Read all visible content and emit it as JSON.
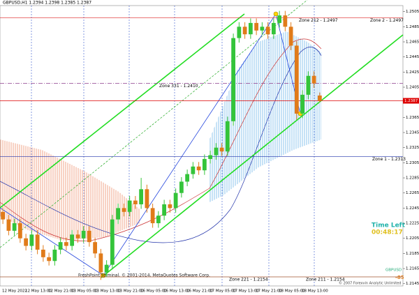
{
  "chart_data": {
    "type": "candlestick",
    "title": "GBPUSD,H1 1.2394 1.2398 1.2385 1.2387",
    "categories": [
      "12 May 2022",
      null,
      null,
      null,
      "12 May 13:00",
      null,
      null,
      null,
      "12 May 21:00",
      null,
      null,
      null,
      "13 May 05:00",
      null,
      null,
      null,
      "13 May 13:00",
      null,
      null,
      null,
      "13 May 21:00",
      null,
      null,
      null,
      "16 May 05:00",
      null,
      null,
      null,
      "16 May 13:00",
      null,
      null,
      null,
      "16 May 21:00",
      null,
      null,
      null,
      "17 May 05:00",
      null,
      null,
      null,
      "17 May 13:00",
      null,
      null,
      null,
      "17 May 21:00",
      null,
      null,
      null,
      "18 May 05:00",
      null,
      null,
      null,
      "18 May 13:00",
      null,
      null,
      null
    ],
    "open": [
      1.224,
      1.223,
      1.2215,
      1.2225,
      1.2205,
      1.2195,
      1.221,
      1.219,
      1.218,
      1.2175,
      1.219,
      1.22,
      1.2195,
      1.221,
      1.2205,
      1.2215,
      1.22,
      1.2185,
      1.216,
      1.217,
      1.223,
      1.2245,
      1.224,
      1.2255,
      1.225,
      1.227,
      1.2245,
      1.2225,
      1.2235,
      1.225,
      1.2245,
      1.2265,
      1.228,
      1.229,
      1.23,
      1.2295,
      1.231,
      1.2315,
      1.2325,
      1.232,
      1.236,
      1.247,
      1.2485,
      1.2475,
      1.249,
      1.248,
      1.2485,
      1.2475,
      1.249,
      1.25,
      1.2485,
      1.246,
      1.237,
      1.2395,
      1.242,
      1.2394
    ],
    "high": [
      1.2246,
      1.2236,
      1.2231,
      1.2231,
      1.2211,
      1.2216,
      1.2216,
      1.2196,
      1.2186,
      1.2196,
      1.2206,
      1.2206,
      1.2216,
      1.2216,
      1.2221,
      1.2221,
      1.2206,
      1.2191,
      1.2176,
      1.2236,
      1.2251,
      1.2251,
      1.2261,
      1.2261,
      1.2285,
      1.2276,
      1.2251,
      1.2241,
      1.2256,
      1.2256,
      1.2271,
      1.2286,
      1.2296,
      1.2306,
      1.2306,
      1.2316,
      1.2321,
      1.2331,
      1.2331,
      1.2366,
      1.2476,
      1.2491,
      1.2491,
      1.2496,
      1.2496,
      1.2491,
      1.2491,
      1.2496,
      1.2506,
      1.2506,
      1.2491,
      1.2466,
      1.2401,
      1.2426,
      1.2426,
      1.2398
    ],
    "low": [
      1.2224,
      1.2209,
      1.2209,
      1.2199,
      1.2189,
      1.2189,
      1.2184,
      1.2174,
      1.2169,
      1.2169,
      1.2184,
      1.2189,
      1.2189,
      1.2199,
      1.2199,
      1.2194,
      1.2179,
      1.215,
      1.2154,
      1.2164,
      1.2224,
      1.2234,
      1.2234,
      1.2244,
      1.2244,
      1.2239,
      1.2219,
      1.2219,
      1.2229,
      1.2239,
      1.2239,
      1.2259,
      1.2274,
      1.2284,
      1.2289,
      1.2289,
      1.2304,
      1.2309,
      1.2314,
      1.2314,
      1.2354,
      1.2464,
      1.2469,
      1.2469,
      1.2474,
      1.2474,
      1.2469,
      1.2469,
      1.2484,
      1.2479,
      1.2454,
      1.2362,
      1.2364,
      1.2389,
      1.2404,
      1.2385
    ],
    "close": [
      1.223,
      1.2215,
      1.2225,
      1.2205,
      1.2195,
      1.221,
      1.219,
      1.218,
      1.2175,
      1.219,
      1.22,
      1.2195,
      1.221,
      1.2205,
      1.2215,
      1.22,
      1.2185,
      1.216,
      1.217,
      1.223,
      1.2245,
      1.224,
      1.2255,
      1.225,
      1.227,
      1.2245,
      1.2225,
      1.2235,
      1.225,
      1.2245,
      1.2265,
      1.228,
      1.229,
      1.23,
      1.2295,
      1.231,
      1.2315,
      1.2325,
      1.232,
      1.236,
      1.247,
      1.2485,
      1.2475,
      1.249,
      1.248,
      1.2485,
      1.2475,
      1.249,
      1.25,
      1.2485,
      1.246,
      1.237,
      1.2395,
      1.242,
      1.241,
      1.2387
    ],
    "up_color": "#34c43a",
    "down_color": "#e07b1a",
    "ylim": [
      1.2142,
      1.2513
    ],
    "yticks": [
      1.2505,
      1.2485,
      1.2465,
      1.2445,
      1.2425,
      1.2405,
      1.2385,
      1.2365,
      1.2345,
      1.2325,
      1.2305,
      1.2285,
      1.2265,
      1.2245,
      1.2225,
      1.2205,
      1.2185,
      1.2165,
      1.2145
    ],
    "zones": [
      {
        "label": "Zone 2 - 1.2497",
        "level": 1.2497,
        "color": "#d22"
      },
      {
        "label": "Zone 212 - 1.2497",
        "level": 1.2497,
        "color": "#d9822b"
      },
      {
        "label": "Zone 331 - 1.2410",
        "level": 1.241,
        "color": "#8b3a8b"
      },
      {
        "label": "Zone 1 - 1.2313",
        "level": 1.2313,
        "color": "#2233aa"
      },
      {
        "label": "Zone 221 - 1.2154",
        "level": 1.2154,
        "color": "#a0522d"
      },
      {
        "label": "Zone 211 - 1.2154",
        "level": 1.2154,
        "color": "#b8860b"
      }
    ],
    "time_left_label": "Time Left",
    "time_left": "00:48:17",
    "copyright": "FreshPoint Terminal, © 2001-2014, MetaQuotes Software Corp.",
    "symbol_label": "GBPUSD",
    "spread_label": "-85",
    "vendor": "© 2007 Forexvin Analytic Unlimited"
  }
}
